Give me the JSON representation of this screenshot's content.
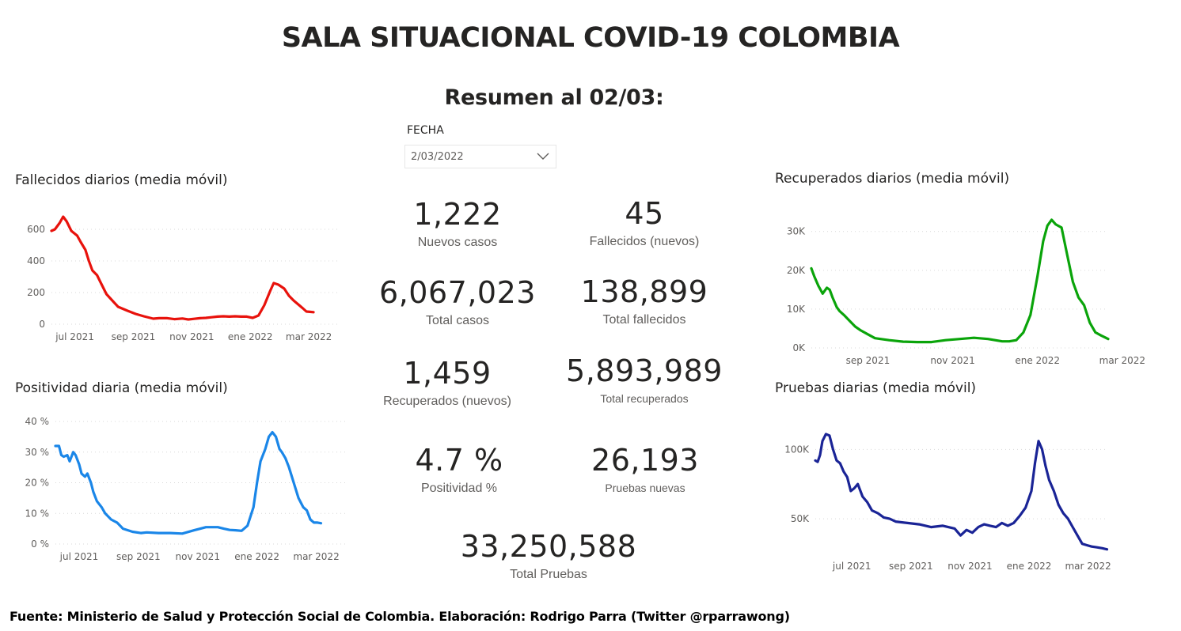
{
  "header": {
    "title": "SALA SITUACIONAL COVID-19 COLOMBIA",
    "subtitle": "Resumen al 02/03:"
  },
  "slicer": {
    "label": "FECHA",
    "value": "2/03/2022"
  },
  "kpis": {
    "nuevos_casos": {
      "value": "1,222",
      "label": "Nuevos casos"
    },
    "fallecidos_nuevos": {
      "value": "45",
      "label": "Fallecidos (nuevos)"
    },
    "total_casos": {
      "value": "6,067,023",
      "label": "Total casos"
    },
    "total_fallecidos": {
      "value": "138,899",
      "label": "Total fallecidos"
    },
    "recuperados_nuevos": {
      "value": "1,459",
      "label": "Recuperados (nuevos)"
    },
    "total_recuperados": {
      "value": "5,893,989",
      "label": "Total recuperados"
    },
    "positividad": {
      "value": "4.7 %",
      "label": "Positividad %"
    },
    "pruebas_nuevas": {
      "value": "26,193",
      "label": "Pruebas nuevas"
    },
    "total_pruebas": {
      "value": "33,250,588",
      "label": "Total Pruebas"
    }
  },
  "footer": "Fuente: Ministerio de Salud y Protección Social de Colombia. Elaboración: Rodrigo Parra (Twitter @rparrawong)",
  "chart_data": [
    {
      "id": "fallecidos",
      "type": "line",
      "title": "Fallecidos diarios (media móvil)",
      "color": "#e8120c",
      "ylim": [
        0,
        700
      ],
      "xlim": [
        23,
        270
      ],
      "yticks": [
        {
          "v": 0,
          "t": "0"
        },
        {
          "v": 200,
          "t": "200"
        },
        {
          "v": 400,
          "t": "400"
        },
        {
          "v": 600,
          "t": "600"
        }
      ],
      "xticks": [
        {
          "d": 43,
          "t": "jul 2021"
        },
        {
          "d": 93,
          "t": "sep 2021"
        },
        {
          "d": 143,
          "t": "nov 2021"
        },
        {
          "d": 193,
          "t": "ene 2022"
        },
        {
          "d": 243,
          "t": "mar 2022"
        }
      ],
      "grid": true,
      "x": [
        23,
        26,
        30,
        33,
        36,
        40,
        45,
        48,
        52,
        55,
        58,
        62,
        66,
        70,
        75,
        80,
        88,
        95,
        102,
        110,
        115,
        122,
        128,
        135,
        140,
        145,
        150,
        155,
        160,
        165,
        170,
        175,
        180,
        185,
        190,
        195,
        200,
        205,
        210,
        213,
        217,
        222,
        226,
        230,
        234,
        238,
        241,
        244,
        247
      ],
      "y": [
        590,
        600,
        640,
        680,
        650,
        590,
        560,
        520,
        470,
        400,
        340,
        310,
        250,
        190,
        150,
        110,
        85,
        65,
        50,
        35,
        38,
        38,
        32,
        36,
        30,
        34,
        38,
        40,
        44,
        48,
        50,
        48,
        50,
        48,
        48,
        40,
        55,
        120,
        210,
        260,
        250,
        225,
        180,
        150,
        125,
        100,
        80,
        78,
        76
      ]
    },
    {
      "id": "positividad",
      "type": "line",
      "title": "Positividad diaria (media móvil)",
      "color": "#1a86e8",
      "ylim": [
        0,
        40
      ],
      "xlim": [
        23,
        270
      ],
      "yticks": [
        {
          "v": 0,
          "t": "0 %"
        },
        {
          "v": 10,
          "t": "10 %"
        },
        {
          "v": 20,
          "t": "20 %"
        },
        {
          "v": 30,
          "t": "30 %"
        },
        {
          "v": 40,
          "t": "40 %"
        }
      ],
      "xticks": [
        {
          "d": 43,
          "t": "jul 2021"
        },
        {
          "d": 93,
          "t": "sep 2021"
        },
        {
          "d": 143,
          "t": "nov 2021"
        },
        {
          "d": 193,
          "t": "ene 2022"
        },
        {
          "d": 243,
          "t": "mar 2022"
        }
      ],
      "grid": true,
      "x": [
        23,
        26,
        28,
        30,
        33,
        35,
        38,
        40,
        43,
        45,
        48,
        50,
        53,
        55,
        58,
        62,
        65,
        70,
        75,
        80,
        88,
        95,
        100,
        110,
        120,
        130,
        140,
        150,
        160,
        165,
        170,
        175,
        180,
        185,
        190,
        193,
        196,
        200,
        203,
        206,
        209,
        212,
        214,
        217,
        220,
        224,
        228,
        232,
        235,
        238,
        241,
        244,
        247
      ],
      "y": [
        32,
        32,
        29,
        28.5,
        29,
        27,
        30,
        29,
        26,
        23,
        22,
        23,
        20,
        17,
        14,
        12,
        10,
        8,
        7,
        5,
        4,
        3.6,
        3.8,
        3.6,
        3.6,
        3.4,
        4.5,
        5.5,
        5.5,
        5,
        4.6,
        4.5,
        4.3,
        6,
        12,
        20,
        27,
        31,
        35,
        36.5,
        35,
        31,
        30,
        28,
        25,
        20,
        15,
        12,
        11,
        8,
        7,
        7,
        6.8
      ]
    },
    {
      "id": "recuperados",
      "type": "line",
      "title": "Recuperados diarios (media móvil)",
      "color": "#0aa40a",
      "ylim": [
        0,
        33000
      ],
      "xlim": [
        35,
        245
      ],
      "yticks": [
        {
          "v": 0,
          "t": "0K"
        },
        {
          "v": 10000,
          "t": "10K"
        },
        {
          "v": 20000,
          "t": "20K"
        },
        {
          "v": 30000,
          "t": "30K"
        }
      ],
      "xticks": [
        {
          "d": 75,
          "t": "sep 2021"
        },
        {
          "d": 135,
          "t": "nov 2021"
        },
        {
          "d": 195,
          "t": "ene 2022"
        },
        {
          "d": 255,
          "t": "mar 2022"
        }
      ],
      "grid": true,
      "x": [
        35,
        37,
        40,
        43,
        46,
        48,
        50,
        53,
        55,
        58,
        62,
        66,
        70,
        75,
        80,
        90,
        100,
        110,
        120,
        130,
        140,
        150,
        160,
        170,
        175,
        180,
        185,
        190,
        195,
        199,
        202,
        205,
        208,
        212,
        216,
        220,
        224,
        228,
        232,
        236,
        240,
        245
      ],
      "y": [
        20500,
        18500,
        16000,
        14000,
        15500,
        15000,
        13000,
        10500,
        9500,
        8500,
        7000,
        5500,
        4500,
        3500,
        2500,
        2000,
        1600,
        1500,
        1500,
        2000,
        2300,
        2600,
        2300,
        1700,
        1700,
        2000,
        4000,
        8500,
        18500,
        27500,
        31500,
        33000,
        31800,
        31000,
        24000,
        17000,
        13000,
        11000,
        6500,
        4000,
        3200,
        2300
      ]
    },
    {
      "id": "pruebas",
      "type": "line",
      "title": "Pruebas diarias (media móvil)",
      "color": "#1a2496",
      "ylim": [
        25000,
        115000
      ],
      "xlim": [
        12,
        260
      ],
      "yticks": [
        {
          "v": 50000,
          "t": "50K"
        },
        {
          "v": 100000,
          "t": "100K"
        }
      ],
      "xticks": [
        {
          "d": 43,
          "t": "jul 2021"
        },
        {
          "d": 93,
          "t": "sep 2021"
        },
        {
          "d": 143,
          "t": "nov 2021"
        },
        {
          "d": 193,
          "t": "ene 2022"
        },
        {
          "d": 243,
          "t": "mar 2022"
        }
      ],
      "grid": true,
      "x": [
        12,
        14,
        16,
        18,
        21,
        24,
        27,
        30,
        33,
        36,
        39,
        42,
        45,
        48,
        52,
        56,
        60,
        65,
        70,
        75,
        80,
        90,
        100,
        110,
        120,
        130,
        135,
        140,
        145,
        150,
        155,
        160,
        165,
        170,
        175,
        180,
        185,
        190,
        195,
        198,
        201,
        204,
        207,
        210,
        214,
        218,
        222,
        226,
        230,
        234,
        238,
        242,
        246,
        250,
        255,
        259
      ],
      "y": [
        92000,
        91000,
        96000,
        106000,
        111000,
        110000,
        100000,
        92000,
        90000,
        84000,
        80000,
        70000,
        72000,
        75000,
        66000,
        62000,
        56000,
        54000,
        51000,
        50000,
        48000,
        47000,
        46000,
        44000,
        45000,
        43000,
        38000,
        42000,
        40000,
        44000,
        46000,
        45000,
        44000,
        47000,
        45000,
        47000,
        52000,
        58000,
        70000,
        90000,
        106000,
        100000,
        88000,
        78000,
        70000,
        60000,
        54000,
        50000,
        44000,
        38000,
        32000,
        31000,
        30000,
        29500,
        28800,
        28000
      ]
    }
  ]
}
